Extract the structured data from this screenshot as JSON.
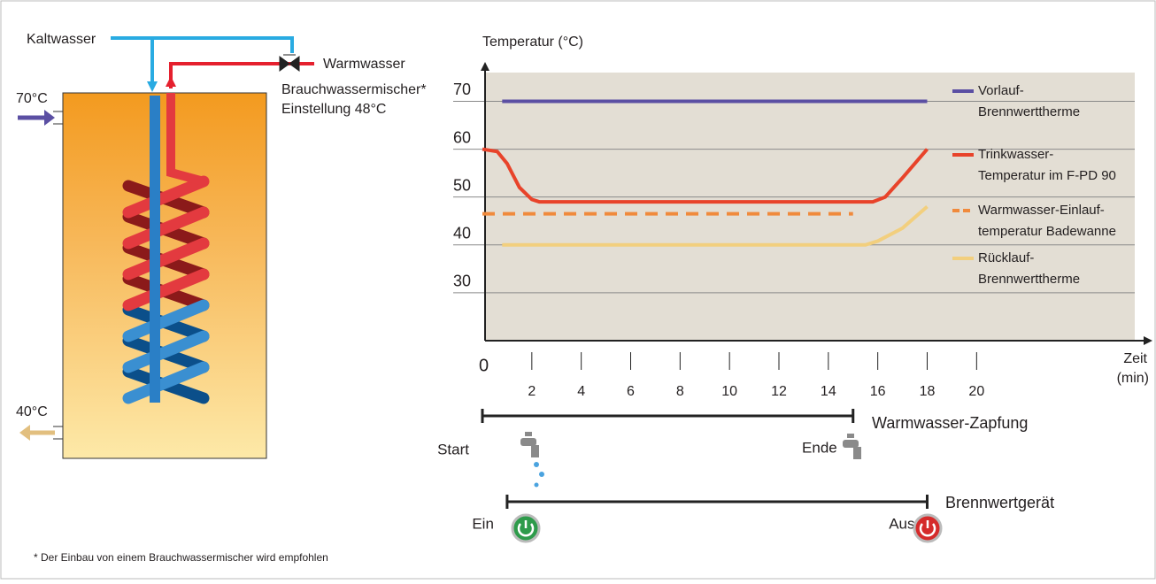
{
  "diagram": {
    "cold_water": "Kaltwasser",
    "warm_water": "Warmwasser",
    "mixer": [
      "Brauchwassermischer*",
      "Einstellung 48°C"
    ],
    "inlet_temp": "70°C",
    "outlet_temp": "40°C",
    "footnote": "* Der Einbau von einem Brauchwassermischer wird empfohlen"
  },
  "chart_data": {
    "type": "line",
    "y_label": "Temperatur (°C)",
    "x_label": [
      "Zeit",
      "(min)"
    ],
    "xlim": [
      0,
      26.4
    ],
    "ylim": [
      20,
      76
    ],
    "xticks": [
      0,
      2,
      4,
      6,
      8,
      10,
      12,
      14,
      16,
      18,
      20
    ],
    "yticks": [
      30,
      40,
      50,
      60,
      70
    ],
    "grid": true,
    "series": [
      {
        "name": [
          "Vorlauf-",
          "Brennwerttherme"
        ],
        "color": "#5b4fa3",
        "dashed": false,
        "x": [
          0.8,
          18
        ],
        "values": [
          70,
          70
        ]
      },
      {
        "name": [
          "Trinkwasser-",
          "Temperatur im F-PD 90"
        ],
        "color": "#e8432a",
        "dashed": false,
        "x": [
          0,
          0.6,
          1,
          1.5,
          2,
          2.3,
          15.3,
          15.8,
          16.3,
          17,
          18
        ],
        "values": [
          60,
          59.5,
          57,
          52,
          49.5,
          49,
          49,
          49,
          50,
          54,
          60
        ]
      },
      {
        "name": [
          "Warmwasser-Einlauf-",
          "temperatur Badewanne"
        ],
        "color": "#f08a3c",
        "dashed": true,
        "x": [
          0,
          15
        ],
        "values": [
          46.5,
          46.5
        ]
      },
      {
        "name": [
          "Rücklauf-",
          "Brennwerttherme"
        ],
        "color": "#f2cf7e",
        "dashed": false,
        "x": [
          0.8,
          15.5,
          16,
          17,
          18
        ],
        "values": [
          40,
          40,
          40.8,
          43.5,
          48
        ]
      }
    ],
    "timelines": [
      {
        "label": "Warmwasser-Zapfung",
        "start": 0,
        "end": 15,
        "start_label": "Start",
        "end_label": "Ende"
      },
      {
        "label": "Brennwertgerät",
        "start": 1,
        "end": 18,
        "start_label": "Ein",
        "end_label": "Aus"
      }
    ]
  }
}
